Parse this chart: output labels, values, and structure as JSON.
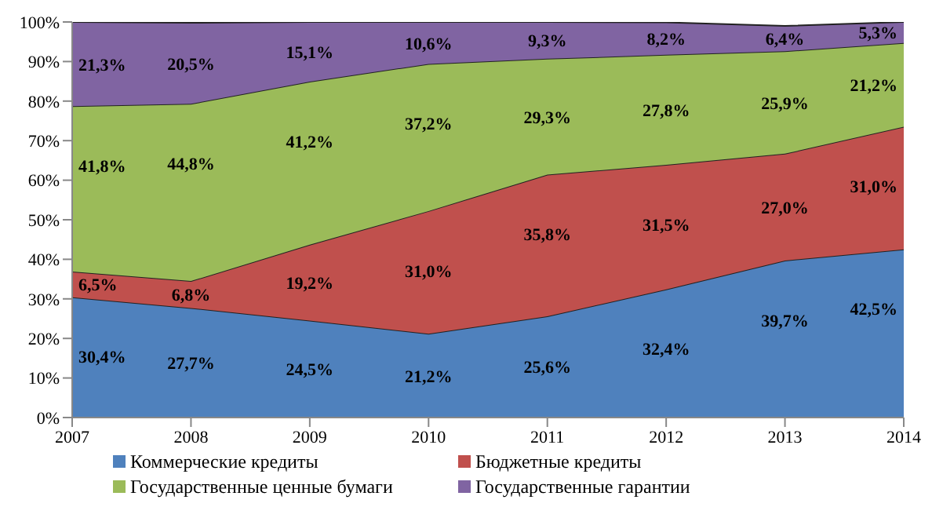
{
  "chart_data": {
    "type": "area",
    "stacked": true,
    "x": [
      2007,
      2008,
      2009,
      2010,
      2011,
      2012,
      2013,
      2014
    ],
    "xlim": [
      2007,
      2014
    ],
    "xticks": [
      2007,
      2008,
      2009,
      2010,
      2011,
      2012,
      2013,
      2014
    ],
    "ylim": [
      0,
      100
    ],
    "yticks": [
      {
        "value": 0,
        "label": "0%"
      },
      {
        "value": 10,
        "label": "10%"
      },
      {
        "value": 20,
        "label": "20%"
      },
      {
        "value": 30,
        "label": "30%"
      },
      {
        "value": 40,
        "label": "40%"
      },
      {
        "value": 50,
        "label": "50%"
      },
      {
        "value": 60,
        "label": "60%"
      },
      {
        "value": 70,
        "label": "70%"
      },
      {
        "value": 80,
        "label": "80%"
      },
      {
        "value": 90,
        "label": "90%"
      },
      {
        "value": 100,
        "label": "100%"
      }
    ],
    "grid": false,
    "legend": "bottom",
    "series": [
      {
        "name": "Коммерческие кредиты",
        "color": "#4f81bd",
        "values": [
          30.4,
          27.7,
          24.5,
          21.2,
          25.6,
          32.4,
          39.7,
          42.5
        ],
        "value_labels": [
          "30,4%",
          "27,7%",
          "24,5%",
          "21,2%",
          "25,6%",
          "32,4%",
          "39,7%",
          "42,5%"
        ]
      },
      {
        "name": "Бюджетные кредиты",
        "color": "#c0504d",
        "values": [
          6.5,
          6.8,
          19.2,
          31.0,
          35.8,
          31.5,
          27.0,
          31.0
        ],
        "value_labels": [
          "6,5%",
          "6,8%",
          "19,2%",
          "31,0%",
          "35,8%",
          "31,5%",
          "27,0%",
          "31,0%"
        ]
      },
      {
        "name": "Государственные ценные бумаги",
        "color": "#9bbb59",
        "values": [
          41.8,
          44.8,
          41.2,
          37.2,
          29.3,
          27.8,
          25.9,
          21.2
        ],
        "value_labels": [
          "41,8%",
          "44,8%",
          "41,2%",
          "37,2%",
          "29,3%",
          "27,8%",
          "25,9%",
          "21,2%"
        ]
      },
      {
        "name": "Государственные гарантии",
        "color": "#8064a2",
        "values": [
          21.3,
          20.5,
          15.1,
          10.6,
          9.3,
          8.2,
          6.4,
          5.3
        ],
        "value_labels": [
          "21,3%",
          "20,5%",
          "15,1%",
          "10,6%",
          "9,3%",
          "8,2%",
          "6,4%",
          "5,3%"
        ]
      }
    ]
  }
}
